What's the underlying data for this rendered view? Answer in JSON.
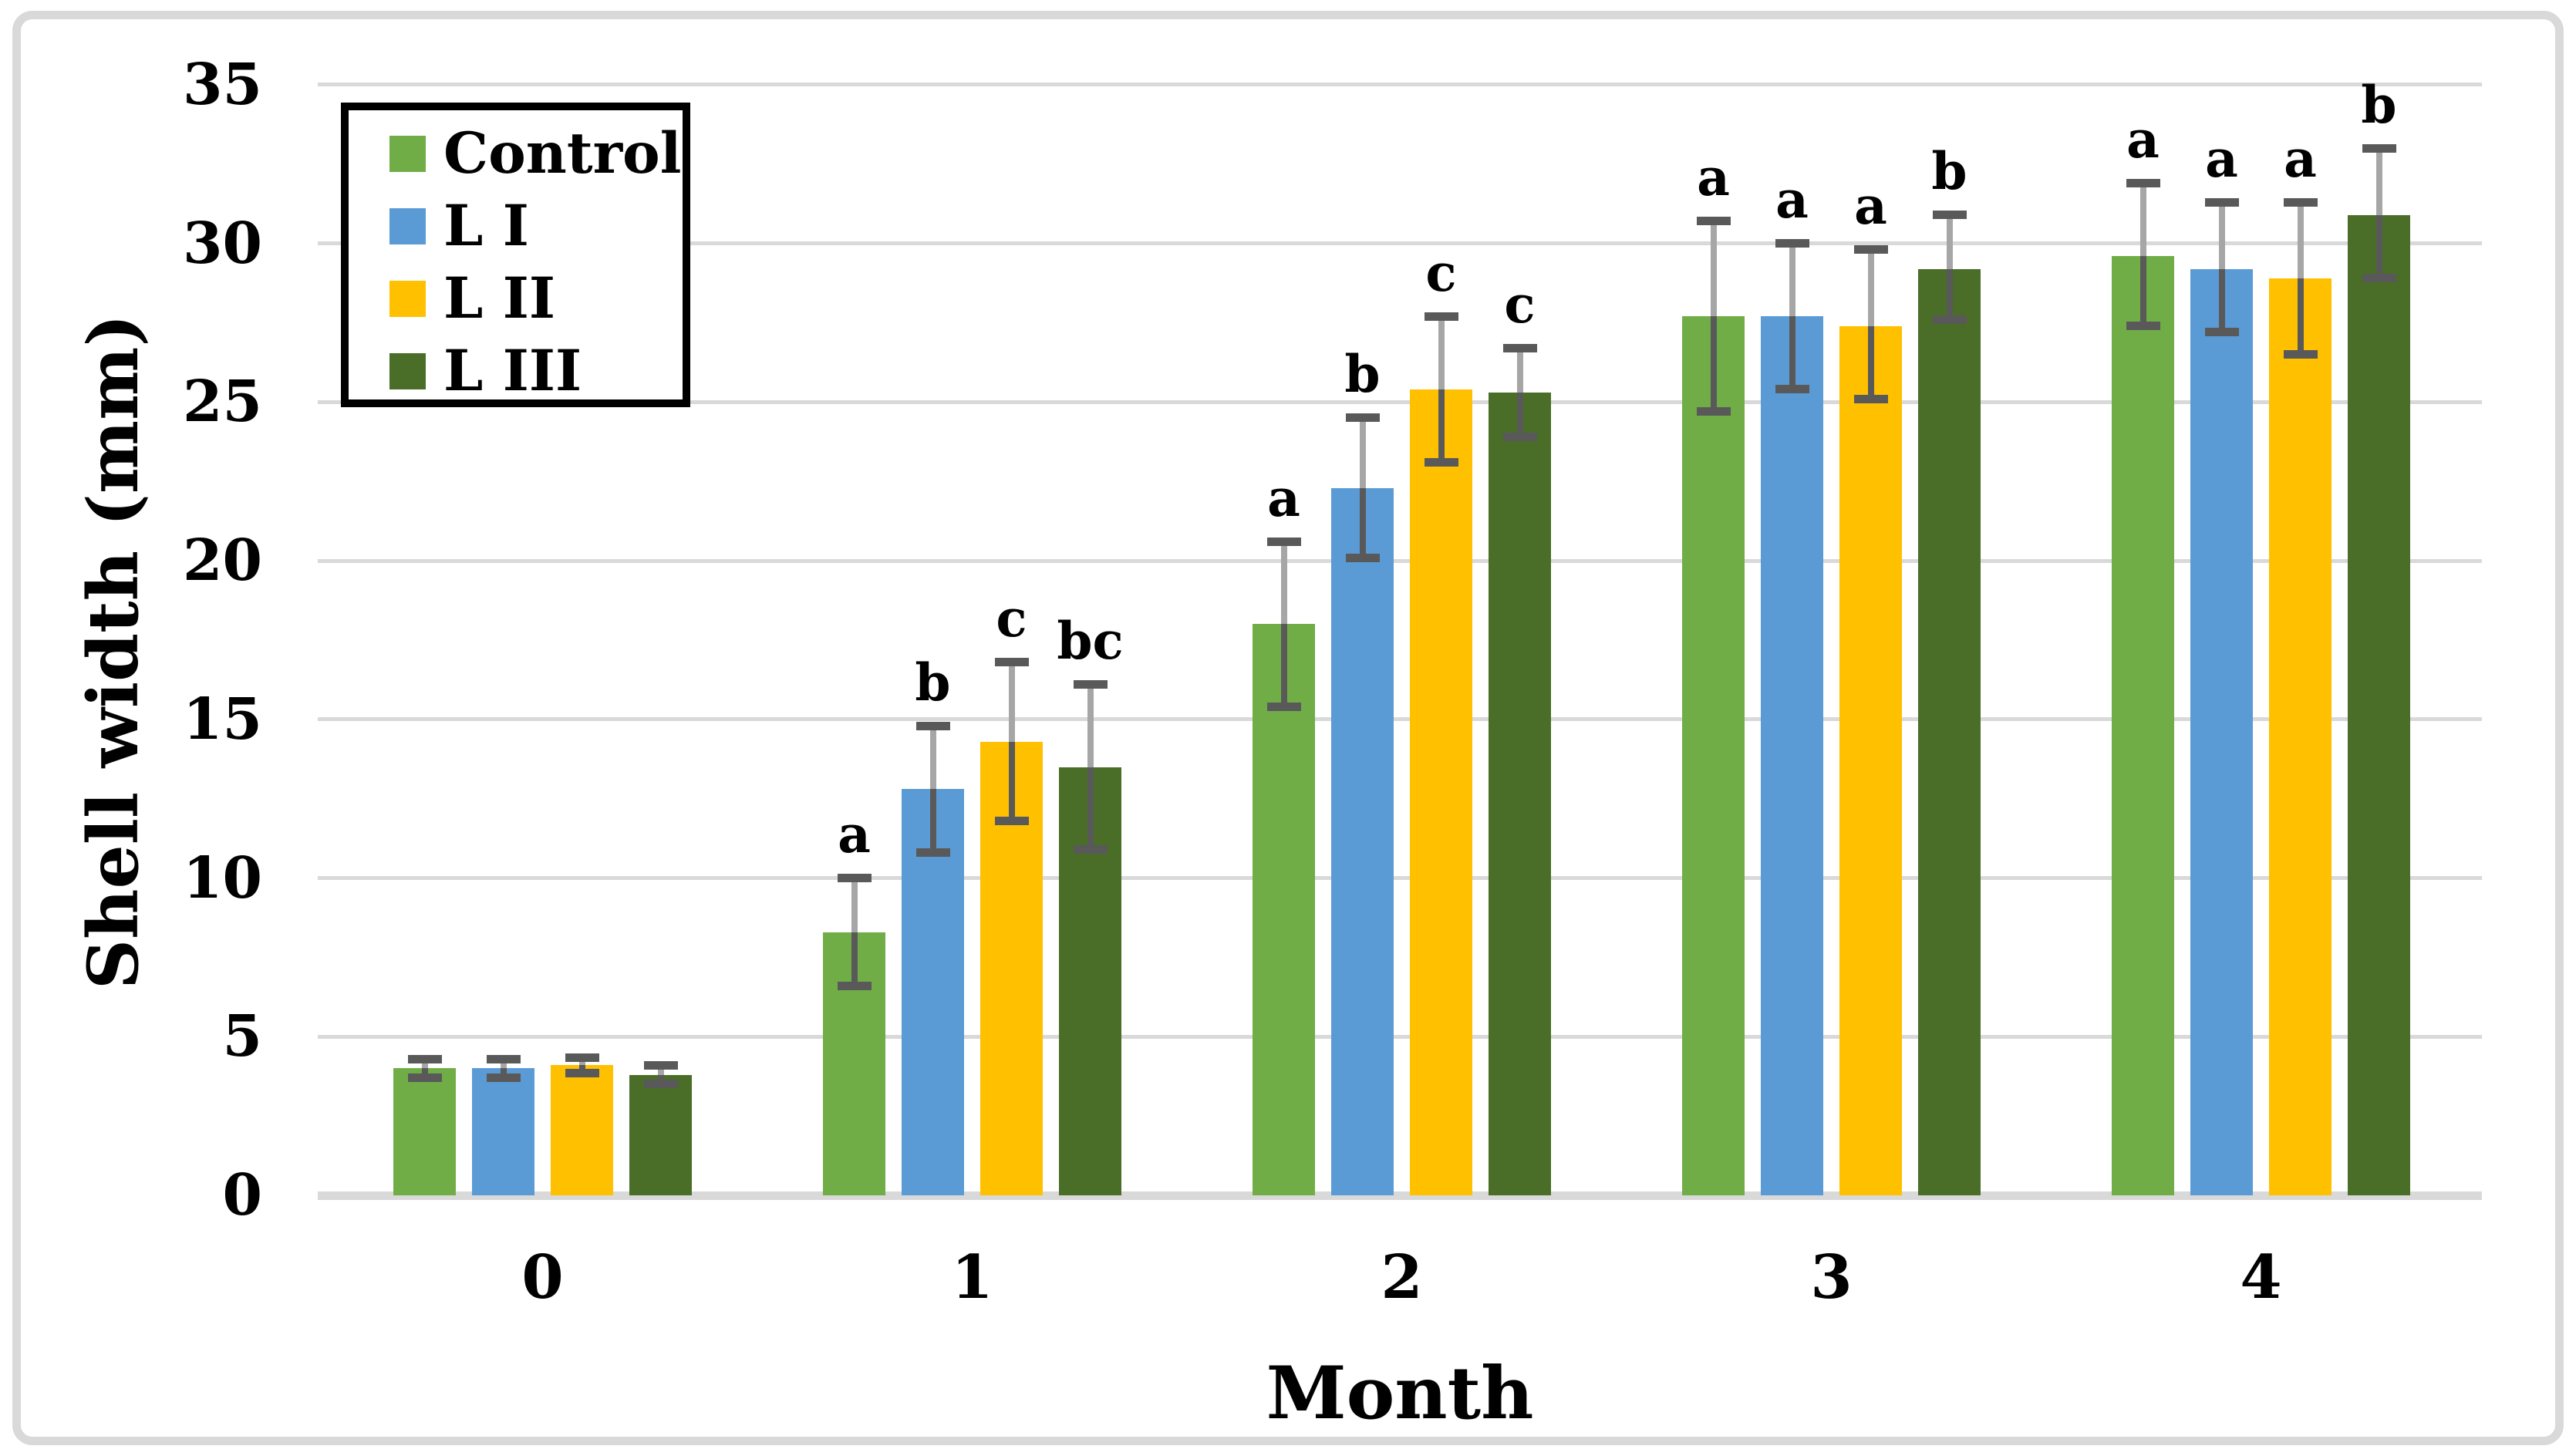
{
  "figure": {
    "background": "#FFFFFF",
    "frame_border_color": "#D9D9D9"
  },
  "chart_data": {
    "type": "bar",
    "title": "",
    "xlabel": "Month",
    "ylabel": "Shell width (mm)",
    "ylim": [
      0,
      35
    ],
    "yticks": [
      0,
      5,
      10,
      15,
      20,
      25,
      30,
      35
    ],
    "categories": [
      "0",
      "1",
      "2",
      "3",
      "4"
    ],
    "grid": true,
    "legend_position": "top-left",
    "gridline_color": "#D9D9D9",
    "error_bar_colors": {
      "upper_line": "#A6A6A6",
      "lower_line": "#595959",
      "caps": "#595959"
    },
    "series": [
      {
        "name": "Control",
        "color": "#70AD47",
        "values": [
          4.0,
          8.3,
          18.0,
          27.7,
          29.6
        ],
        "err_plus": [
          0.3,
          1.7,
          2.6,
          3.0,
          2.3
        ],
        "err_minus": [
          0.3,
          1.7,
          2.6,
          3.0,
          2.2
        ],
        "letters": [
          "",
          "a",
          "a",
          "a",
          "a"
        ]
      },
      {
        "name": "L I",
        "color": "#5B9BD5",
        "values": [
          4.0,
          12.8,
          22.3,
          27.7,
          29.2
        ],
        "err_plus": [
          0.3,
          2.0,
          2.2,
          2.3,
          2.1
        ],
        "err_minus": [
          0.3,
          2.0,
          2.2,
          2.3,
          2.0
        ],
        "letters": [
          "",
          "b",
          "b",
          "a",
          "a"
        ]
      },
      {
        "name": "L II",
        "color": "#FFC000",
        "values": [
          4.1,
          14.3,
          25.4,
          27.4,
          28.9
        ],
        "err_plus": [
          0.25,
          2.5,
          2.3,
          2.4,
          2.4
        ],
        "err_minus": [
          0.25,
          2.5,
          2.3,
          2.3,
          2.4
        ],
        "letters": [
          "",
          "c",
          "c",
          "a",
          "a"
        ]
      },
      {
        "name": "L III",
        "color": "#4A6E28",
        "values": [
          3.8,
          13.5,
          25.3,
          29.2,
          30.9
        ],
        "err_plus": [
          0.3,
          2.6,
          1.4,
          1.7,
          2.1
        ],
        "err_minus": [
          0.3,
          2.6,
          1.4,
          1.6,
          2.0
        ],
        "letters": [
          "",
          "bc",
          "c",
          "b",
          "b"
        ]
      }
    ]
  }
}
